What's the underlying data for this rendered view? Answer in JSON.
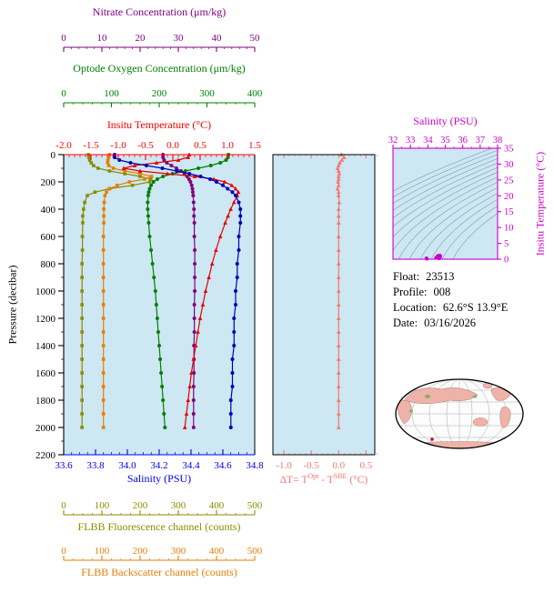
{
  "figure": {
    "background": "#ffffff",
    "plot_bg": "#cde7f3"
  },
  "axes": {
    "nitrate": {
      "label": "Nitrate Concentration (μm/kg)",
      "color": "#800080",
      "min": 0,
      "max": 50,
      "minor_step": 2,
      "ticks": [
        "0",
        "10",
        "20",
        "30",
        "40",
        "50"
      ]
    },
    "oxygen": {
      "label": "Optode Oxygen Concentration (μm/kg)",
      "color": "#008000",
      "min": 0,
      "max": 400,
      "minor_step": 20,
      "ticks": [
        "0",
        "100",
        "200",
        "300",
        "400"
      ]
    },
    "insitu_temperature": {
      "label": "Insitu Temperature (°C)",
      "color": "#ff0000",
      "min": -2.0,
      "max": 1.5,
      "minor_step": 0.1,
      "ticks": [
        "-2.0",
        "-1.5",
        "-1.0",
        "-0.5",
        "0.0",
        "0.5",
        "1.0",
        "1.5"
      ]
    },
    "pressure": {
      "label": "Pressure (decibar)",
      "color": "#000000",
      "min": 0,
      "max": 2200,
      "minor_step": 100,
      "ticks": [
        "0",
        "200",
        "400",
        "600",
        "800",
        "1000",
        "1200",
        "1400",
        "1600",
        "1800",
        "2000",
        "2200"
      ]
    },
    "salinity": {
      "label": "Salinity (PSU)",
      "color": "#0000ee",
      "min": 33.6,
      "max": 34.8,
      "minor_step": 0.05,
      "ticks": [
        "33.6",
        "33.8",
        "34.0",
        "34.2",
        "34.4",
        "34.6",
        "34.8"
      ]
    },
    "fluorescence": {
      "label": "FLBB Fluorescence channel (counts)",
      "color": "#8b8b00",
      "min": 0,
      "max": 500,
      "minor_step": 25,
      "ticks": [
        "0",
        "100",
        "200",
        "300",
        "400",
        "500"
      ]
    },
    "backscatter": {
      "label": "FLBB Backscatter channel (counts)",
      "color": "#e87e04",
      "min": 0,
      "max": 500,
      "minor_step": 25,
      "ticks": [
        "0",
        "100",
        "200",
        "300",
        "400",
        "500"
      ]
    },
    "delta_t": {
      "label_parts": {
        "pre": "ΔT= T",
        "sup1": "Opt",
        "mid": " - T",
        "sup2": "SBE",
        "post": " (°C)"
      },
      "color": "#f4776f",
      "min": -1.2,
      "max": 0.66,
      "minor_step": 0.1,
      "ticks": [
        "-1.0",
        "-0.5",
        "0.0",
        "0.5"
      ]
    },
    "ts_salinity": {
      "label": "Salinity (PSU)",
      "color": "#cc00cc",
      "min": 32,
      "max": 38,
      "minor_step": 0.5,
      "ticks": [
        "32",
        "33",
        "34",
        "35",
        "36",
        "37",
        "38"
      ]
    },
    "ts_temperature": {
      "label": "Insitu Temperature (°C)",
      "color": "#cc00cc",
      "min": 0,
      "max": 35,
      "ticks": [
        "0",
        "5",
        "10",
        "15",
        "20",
        "25",
        "30",
        "35"
      ]
    }
  },
  "info": {
    "lines": [
      {
        "label": "Float:",
        "value": "23513"
      },
      {
        "label": "Profile:",
        "value": "008"
      },
      {
        "label": "Location:",
        "value": "62.6°S 13.9°E"
      },
      {
        "label": "Date:",
        "value": "03/16/2026"
      }
    ]
  },
  "map": {
    "ocean": "#fcfcfc",
    "land": "#eeb2a8",
    "vegetation": "#7fae6f",
    "outline": "#000000",
    "graticule": "#aaaaaa",
    "float_marker": "#cc0033"
  },
  "chart_data": {
    "type": "line",
    "description": "Profiling-float vertical profiles vs pressure, a ΔT panel, and a T-S diagram",
    "pressure_dbar": [
      0,
      20,
      40,
      60,
      80,
      100,
      120,
      140,
      160,
      180,
      200,
      225,
      250,
      275,
      300,
      350,
      400,
      450,
      500,
      600,
      700,
      800,
      900,
      1000,
      1100,
      1200,
      1300,
      1400,
      1500,
      1600,
      1700,
      1800,
      1900,
      2000
    ],
    "profiles": {
      "insitu_temperature_c": {
        "axis": "insitu_temperature",
        "color": "#e60000",
        "marker": "triangle",
        "values": [
          0.3,
          0.28,
          0.1,
          -0.3,
          -0.7,
          -0.9,
          -0.6,
          -0.1,
          0.4,
          0.75,
          0.95,
          1.08,
          1.15,
          1.2,
          1.18,
          1.12,
          1.06,
          1.01,
          0.96,
          0.87,
          0.79,
          0.72,
          0.66,
          0.6,
          0.55,
          0.5,
          0.46,
          0.42,
          0.38,
          0.34,
          0.31,
          0.28,
          0.25,
          0.22
        ]
      },
      "salinity_psu": {
        "axis": "salinity",
        "color": "#0000bb",
        "marker": "circle",
        "values": [
          33.92,
          33.92,
          33.95,
          34.02,
          34.12,
          34.22,
          34.31,
          34.39,
          34.46,
          34.52,
          34.56,
          34.6,
          34.63,
          34.66,
          34.68,
          34.7,
          34.71,
          34.71,
          34.71,
          34.7,
          34.7,
          34.69,
          34.69,
          34.68,
          34.68,
          34.67,
          34.67,
          34.67,
          34.66,
          34.66,
          34.66,
          34.65,
          34.65,
          34.65
        ]
      },
      "oxygen_umkg": {
        "axis": "oxygen",
        "color": "#008000",
        "marker": "circle",
        "values": [
          345,
          344,
          340,
          328,
          308,
          282,
          255,
          228,
          208,
          196,
          188,
          183,
          180,
          178,
          177,
          176,
          176,
          177,
          178,
          180,
          183,
          186,
          189,
          192,
          194,
          196,
          198,
          200,
          202,
          204,
          206,
          208,
          210,
          212
        ]
      },
      "nitrate_umkg": {
        "axis": "nitrate",
        "color": "#800080",
        "marker": "circle",
        "values": [
          26.0,
          26.0,
          26.3,
          27.0,
          28.2,
          29.5,
          30.7,
          31.6,
          32.3,
          32.8,
          33.2,
          33.5,
          33.7,
          33.8,
          33.9,
          34.0,
          34.1,
          34.1,
          34.2,
          34.2,
          34.3,
          34.3,
          34.3,
          34.3,
          34.2,
          34.2,
          34.2,
          34.1,
          34.1,
          34.1,
          34.0,
          34.0,
          34.0,
          34.0
        ]
      },
      "fluorescence_counts": {
        "axis": "fluorescence",
        "color": "#8b8b00",
        "marker": "square",
        "values": [
          65,
          66,
          68,
          72,
          78,
          90,
          120,
          160,
          200,
          228,
          225,
          180,
          120,
          82,
          62,
          55,
          52,
          50,
          50,
          49,
          49,
          48,
          48,
          48,
          48,
          48,
          48,
          48,
          48,
          48,
          48,
          48,
          48,
          48
        ]
      },
      "backscatter_counts": {
        "axis": "backscatter",
        "color": "#e87e04",
        "marker": "square",
        "values": [
          120,
          118,
          116,
          115,
          118,
          130,
          160,
          200,
          230,
          212,
          172,
          140,
          120,
          112,
          108,
          106,
          105,
          105,
          105,
          104,
          104,
          104,
          104,
          104,
          104,
          104,
          104,
          104,
          104,
          104,
          104,
          104,
          104,
          104
        ]
      },
      "delta_t_c": {
        "axis": "delta_t",
        "color": "#f4776f",
        "marker": "triangle",
        "values": [
          0.05,
          0.1,
          0.06,
          0.02,
          0.0,
          -0.02,
          0.0,
          0.01,
          0.0,
          0.0,
          -0.01,
          0.0,
          -0.02,
          0.0,
          0.0,
          0.01,
          0.0,
          0.0,
          0.0,
          0.0,
          0.0,
          0.0,
          0.0,
          0.0,
          0.0,
          0.0,
          0.0,
          0.0,
          0.0,
          0.0,
          0.0,
          0.0,
          0.0,
          0.0
        ]
      }
    },
    "pressure_range_dbar": [
      0,
      2200
    ],
    "ts_diagram": {
      "x": "salinity_psu",
      "y": "insitu_temperature_c",
      "xlim": [
        32,
        38
      ],
      "ylim": [
        0,
        35
      ],
      "point_color": "#cc00cc",
      "isopycnal_contours": true
    }
  }
}
